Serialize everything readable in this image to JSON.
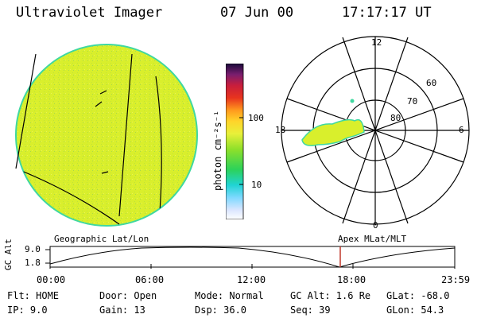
{
  "header": {
    "instrument": "Ultraviolet Imager",
    "date": "07 Jun 00",
    "time": "17:17:17 UT"
  },
  "colorbar": {
    "unit_label": "photon cm⁻²s⁻¹",
    "ticks": [
      "100",
      "10"
    ]
  },
  "polar": {
    "hour_labels": {
      "top": "12",
      "left": "18",
      "right": "6",
      "bottom": "0"
    },
    "lat_labels": [
      "60",
      "70",
      "80"
    ]
  },
  "map_labels": {
    "left": "Geographic Lat/Lon",
    "right": "Apex MLat/MLT"
  },
  "orbit": {
    "ylabel": "GC Alt",
    "y_ticks": [
      "9.0",
      "1.8"
    ],
    "x_ticks": [
      "00:00",
      "06:00",
      "12:00",
      "18:00",
      "23:59"
    ],
    "marker_time": "17:17"
  },
  "status": {
    "flt": "Flt: HOME",
    "ip": "IP:  9.0",
    "door": "Door: Open",
    "gain": "Gain: 13",
    "mode": "Mode: Normal",
    "dsp": "Dsp:   36.0",
    "gc_alt": "GC Alt: 1.6 Re",
    "seq": "Seq: 39",
    "glat": "GLat: -68.0",
    "glon": "GLon:  54.3"
  },
  "colors": {
    "disk_fill": "#d9ef2c",
    "disk_edge": "#3fd8a0",
    "marker": "#c0392b"
  }
}
